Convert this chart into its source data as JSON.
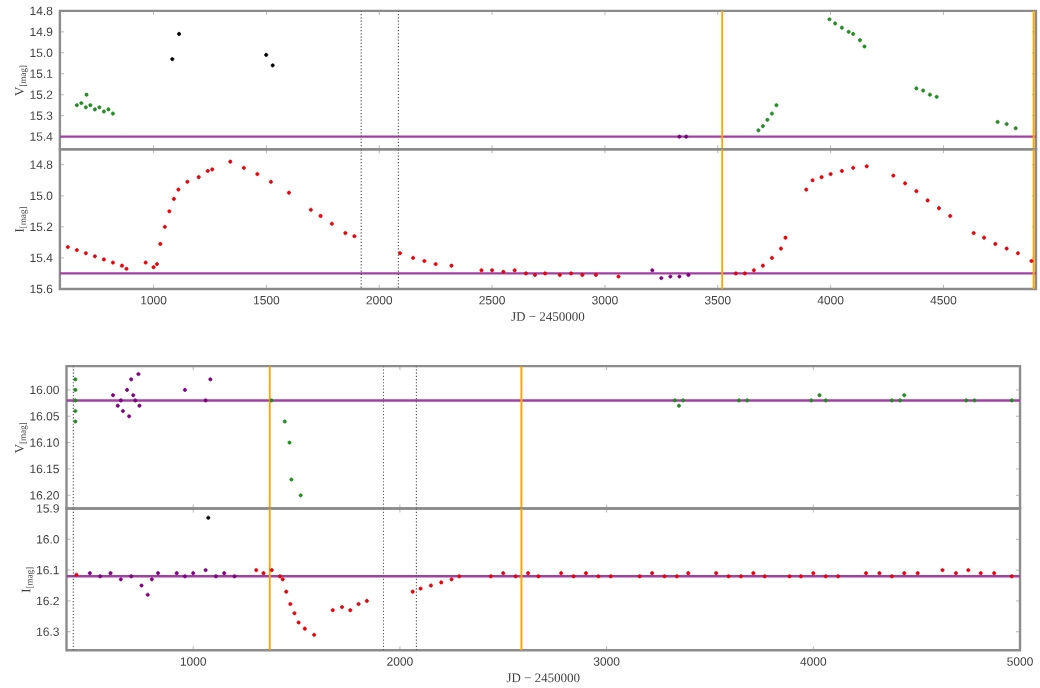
{
  "chart_data": [
    {
      "type": "scatter",
      "ylabel": "V$_{[mag]}$",
      "tick_labels": "y",
      "xlim": [
        585,
        4910
      ],
      "xticks": [
        1000,
        1500,
        2000,
        2500,
        3000,
        3500,
        4000,
        4500
      ],
      "ylim": [
        15.46,
        14.8
      ],
      "yticks": [
        14.8,
        14.9,
        {
          "value": 15,
          "label": "15.0"
        },
        15.1,
        15.2,
        15.3,
        15.4
      ],
      "series": [
        {
          "color": "#228b22",
          "x": [
            660,
            680,
            700,
            703,
            720,
            740,
            760,
            780,
            800,
            820,
            3680,
            3700,
            3720,
            3740,
            3760,
            3995,
            4020,
            4050,
            4080,
            4100,
            4130,
            4150,
            4380,
            4410,
            4440,
            4470,
            4740,
            4780,
            4820
          ],
          "values": [
            15.25,
            15.24,
            15.26,
            15.2,
            15.25,
            15.27,
            15.26,
            15.28,
            15.27,
            15.29,
            15.37,
            15.35,
            15.32,
            15.29,
            15.25,
            14.84,
            14.86,
            14.88,
            14.9,
            14.91,
            14.94,
            14.97,
            15.17,
            15.18,
            15.2,
            15.21,
            15.33,
            15.34,
            15.36
          ]
        },
        {
          "color": "#000000",
          "x": [
            1083,
            1113,
            1499,
            1528
          ],
          "values": [
            15.03,
            14.91,
            15.01,
            15.06
          ]
        },
        {
          "color": "#800080",
          "x": [
            3330,
            3360
          ],
          "values": [
            15.4,
            15.4
          ]
        }
      ],
      "ref_lines": [
        {
          "axis": "y",
          "value": 15.4,
          "color": "#a040a0",
          "line_style": "solid"
        },
        {
          "axis": "x",
          "value": 1920,
          "color": "#555555",
          "line_style": "dotted"
        },
        {
          "axis": "x",
          "value": 2085,
          "color": "#555555",
          "line_style": "dotted"
        },
        {
          "axis": "x",
          "value": 3520,
          "color": "#ffa500",
          "line_style": "solid"
        },
        {
          "axis": "x",
          "value": 4900,
          "color": "#ffa500",
          "line_style": "solid"
        }
      ]
    },
    {
      "type": "scatter",
      "ylabel": "I$_{[mag]}$",
      "xlabel": "JD − 2450000",
      "xlim": [
        585,
        4910
      ],
      "xticks": [
        1000,
        1500,
        2000,
        2500,
        3000,
        3500,
        4000,
        4500
      ],
      "ylim": [
        15.6,
        14.7
      ],
      "yticks": [
        14.8,
        {
          "value": 15,
          "label": "15.0"
        },
        15.2,
        15.4,
        15.6
      ],
      "series": [
        {
          "color": "#e8000b",
          "x": [
            620,
            660,
            700,
            740,
            780,
            820,
            860,
            880,
            965,
            1000,
            1015,
            1030,
            1050,
            1070,
            1090,
            1110,
            1150,
            1200,
            1240,
            1260,
            1340,
            1400,
            1460,
            1520,
            1600,
            1697,
            1740,
            1790,
            1850,
            1890,
            2092,
            2150,
            2200,
            2250,
            2320,
            2453,
            2500,
            2550,
            2600,
            2650,
            2690,
            2735,
            2800,
            2850,
            2900,
            2960,
            3060,
            3580,
            3620,
            3660,
            3700,
            3740,
            3780,
            3800,
            3892,
            3920,
            3960,
            4000,
            4050,
            4100,
            4160,
            4278,
            4330,
            4380,
            4430,
            4480,
            4530,
            4634,
            4680,
            4730,
            4780,
            4830,
            4890
          ],
          "values": [
            15.33,
            15.35,
            15.37,
            15.39,
            15.41,
            15.43,
            15.45,
            15.47,
            15.43,
            15.46,
            15.44,
            15.31,
            15.2,
            15.1,
            15.02,
            14.96,
            14.91,
            14.88,
            14.84,
            14.83,
            14.78,
            14.82,
            14.86,
            14.91,
            14.98,
            15.09,
            15.13,
            15.18,
            15.24,
            15.26,
            15.37,
            15.4,
            15.42,
            15.44,
            15.45,
            15.48,
            15.48,
            15.49,
            15.48,
            15.5,
            15.51,
            15.5,
            15.51,
            15.5,
            15.51,
            15.51,
            15.52,
            15.5,
            15.5,
            15.48,
            15.45,
            15.4,
            15.34,
            15.27,
            14.96,
            14.9,
            14.88,
            14.86,
            14.84,
            14.82,
            14.81,
            14.87,
            14.92,
            14.97,
            15.03,
            15.08,
            15.13,
            15.24,
            15.27,
            15.31,
            15.34,
            15.37,
            15.42
          ]
        },
        {
          "color": "#800080",
          "x": [
            3210,
            3250,
            3290,
            3330,
            3370
          ],
          "values": [
            15.48,
            15.53,
            15.52,
            15.52,
            15.51
          ]
        }
      ],
      "ref_lines": [
        {
          "axis": "y",
          "value": 15.5,
          "color": "#a040a0",
          "line_style": "solid"
        },
        {
          "axis": "x",
          "value": 1920,
          "color": "#555555",
          "line_style": "dotted"
        },
        {
          "axis": "x",
          "value": 2085,
          "color": "#555555",
          "line_style": "dotted"
        },
        {
          "axis": "x",
          "value": 3520,
          "color": "#ffa500",
          "line_style": "solid"
        },
        {
          "axis": "x",
          "value": 4900,
          "color": "#ffa500",
          "line_style": "solid"
        }
      ]
    },
    {
      "type": "scatter",
      "ylabel": "V$_{[mag]}$",
      "tick_labels": "y",
      "xlim": [
        387,
        5000
      ],
      "xticks": [
        1000,
        2000,
        3000,
        4000,
        5000
      ],
      "ylim": [
        16.225,
        15.955
      ],
      "yticks": [
        {
          "value": 16,
          "label": "16.00"
        },
        16.05,
        {
          "value": 16.1,
          "label": "16.10"
        },
        16.15,
        {
          "value": 16.2,
          "label": "16.20"
        }
      ],
      "series": [
        {
          "color": "#228b22",
          "x": [
            430,
            430,
            430,
            430,
            430,
            1379,
            1443,
            1466,
            1475,
            1520,
            3330,
            3350,
            3370,
            3640,
            3680,
            3990,
            4030,
            4060,
            4380,
            4420,
            4440,
            4740,
            4780,
            4960
          ],
          "values": [
            15.98,
            16.0,
            16.02,
            16.04,
            16.06,
            16.02,
            16.06,
            16.1,
            16.17,
            16.2,
            16.02,
            16.03,
            16.02,
            16.02,
            16.02,
            16.02,
            16.01,
            16.02,
            16.02,
            16.02,
            16.01,
            16.02,
            16.02,
            16.02
          ]
        },
        {
          "color": "#800080",
          "x": [
            612,
            635,
            650,
            660,
            680,
            690,
            700,
            710,
            720,
            735,
            740,
            960,
            1060,
            1083
          ],
          "values": [
            16.01,
            16.03,
            16.02,
            16.04,
            16.0,
            16.05,
            15.98,
            16.01,
            16.02,
            15.97,
            16.03,
            16.0,
            16.02,
            15.98
          ]
        }
      ],
      "ref_lines": [
        {
          "axis": "y",
          "value": 16.02,
          "color": "#a040a0",
          "line_style": "solid"
        },
        {
          "axis": "x",
          "value": 420,
          "color": "#555555",
          "line_style": "dotted"
        },
        {
          "axis": "x",
          "value": 1920,
          "color": "#555555",
          "line_style": "dotted"
        },
        {
          "axis": "x",
          "value": 2080,
          "color": "#555555",
          "line_style": "dotted"
        },
        {
          "axis": "x",
          "value": 1370,
          "color": "#ffa500",
          "line_style": "solid"
        },
        {
          "axis": "x",
          "value": 2588,
          "color": "#ffa500",
          "line_style": "solid"
        }
      ]
    },
    {
      "type": "scatter",
      "ylabel": "I$_{[mag]}$",
      "xlabel": "JD − 2450000",
      "xlim": [
        387,
        5000
      ],
      "xticks": [
        1000,
        2000,
        3000,
        4000,
        5000
      ],
      "ylim": [
        16.36,
        15.9
      ],
      "yticks": [
        15.9,
        {
          "value": 16,
          "label": "16.0"
        },
        16.1,
        16.2,
        16.3
      ],
      "series": [
        {
          "color": "#e8000b",
          "x": [
            435,
            1305,
            1340,
            1380,
            1420,
            1433,
            1450,
            1470,
            1490,
            1510,
            1540,
            1585,
            1675,
            1720,
            1760,
            1800,
            1840,
            2062,
            2100,
            2150,
            2200,
            2250,
            2287,
            2440,
            2500,
            2560,
            2620,
            2670,
            2780,
            2840,
            2900,
            2960,
            3020,
            3160,
            3220,
            3280,
            3340,
            3395,
            3530,
            3590,
            3650,
            3710,
            3765,
            3885,
            3940,
            4000,
            4060,
            4120,
            4255,
            4320,
            4380,
            4440,
            4505,
            4625,
            4690,
            4750,
            4810,
            4875,
            4960
          ],
          "values": [
            16.115,
            16.1,
            16.11,
            16.1,
            16.12,
            16.13,
            16.17,
            16.21,
            16.24,
            16.27,
            16.29,
            16.31,
            16.23,
            16.22,
            16.23,
            16.21,
            16.2,
            16.17,
            16.16,
            16.15,
            16.14,
            16.13,
            16.12,
            16.12,
            16.11,
            16.12,
            16.11,
            16.12,
            16.11,
            16.12,
            16.11,
            16.12,
            16.12,
            16.12,
            16.11,
            16.12,
            16.12,
            16.11,
            16.11,
            16.12,
            16.12,
            16.11,
            16.12,
            16.12,
            16.12,
            16.11,
            16.12,
            16.12,
            16.11,
            16.11,
            16.12,
            16.11,
            16.11,
            16.1,
            16.11,
            16.1,
            16.11,
            16.11,
            16.12
          ]
        },
        {
          "color": "#800080",
          "x": [
            500,
            550,
            600,
            650,
            700,
            750,
            780,
            800,
            830,
            920,
            960,
            1000,
            1060,
            1110,
            1150,
            1200
          ],
          "values": [
            16.11,
            16.12,
            16.11,
            16.13,
            16.12,
            16.15,
            16.18,
            16.13,
            16.11,
            16.11,
            16.12,
            16.11,
            16.1,
            16.12,
            16.11,
            16.12
          ]
        },
        {
          "color": "#000000",
          "x": [
            1073
          ],
          "values": [
            15.93
          ]
        }
      ],
      "ref_lines": [
        {
          "axis": "y",
          "value": 16.12,
          "color": "#a040a0",
          "line_style": "solid"
        },
        {
          "axis": "x",
          "value": 420,
          "color": "#555555",
          "line_style": "dotted"
        },
        {
          "axis": "x",
          "value": 1920,
          "color": "#555555",
          "line_style": "dotted"
        },
        {
          "axis": "x",
          "value": 2080,
          "color": "#555555",
          "line_style": "dotted"
        },
        {
          "axis": "x",
          "value": 1370,
          "color": "#ffa500",
          "line_style": "solid"
        },
        {
          "axis": "x",
          "value": 2588,
          "color": "#ffa500",
          "line_style": "solid"
        }
      ]
    }
  ]
}
